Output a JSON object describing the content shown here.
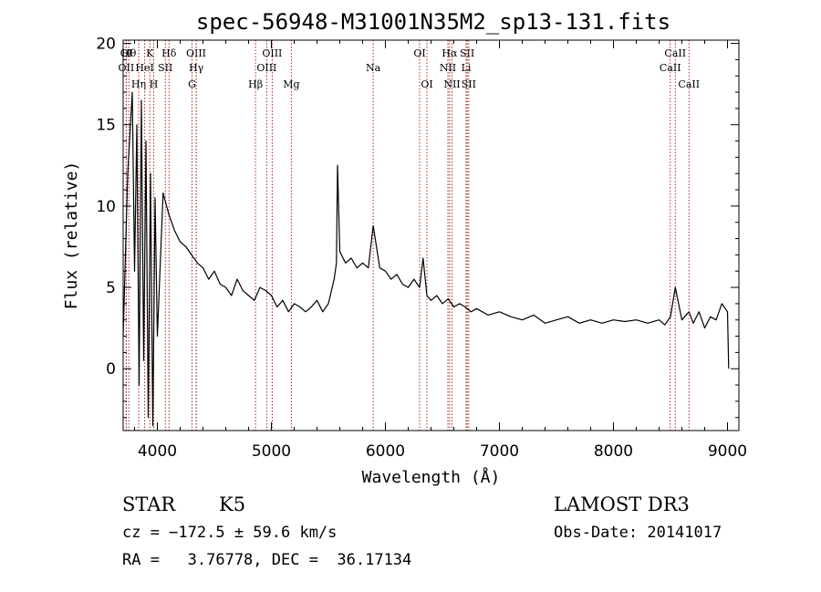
{
  "chart_data": {
    "type": "line",
    "title": "spec-56948-M31001N35M2_sp13-131.fits",
    "xlabel": "Wavelength (Å)",
    "ylabel": "Flux (relative)",
    "xlim": [
      3700,
      9100
    ],
    "ylim": [
      -3.8,
      20.2
    ],
    "xticks": [
      4000,
      5000,
      6000,
      7000,
      8000,
      9000
    ],
    "yticks": [
      0,
      5,
      10,
      15,
      20
    ],
    "series": [
      {
        "name": "spectrum",
        "x": [
          3700,
          3740,
          3780,
          3800,
          3820,
          3840,
          3860,
          3880,
          3900,
          3920,
          3940,
          3960,
          3980,
          4000,
          4050,
          4100,
          4150,
          4200,
          4250,
          4300,
          4350,
          4400,
          4450,
          4500,
          4550,
          4600,
          4650,
          4700,
          4750,
          4800,
          4850,
          4900,
          4950,
          5000,
          5050,
          5100,
          5150,
          5200,
          5250,
          5300,
          5350,
          5400,
          5450,
          5500,
          5550,
          5570,
          5580,
          5600,
          5650,
          5700,
          5750,
          5800,
          5850,
          5893,
          5950,
          6000,
          6050,
          6100,
          6150,
          6200,
          6250,
          6300,
          6330,
          6364,
          6400,
          6450,
          6500,
          6550,
          6600,
          6650,
          6700,
          6750,
          6800,
          6900,
          7000,
          7100,
          7200,
          7300,
          7400,
          7500,
          7600,
          7700,
          7800,
          7900,
          8000,
          8100,
          8200,
          8300,
          8400,
          8450,
          8500,
          8542,
          8600,
          8662,
          8700,
          8750,
          8800,
          8850,
          8900,
          8950,
          9000,
          9010
        ],
        "y": [
          2.0,
          12.0,
          17.0,
          6.0,
          15.0,
          -1.0,
          16.5,
          0.5,
          14.0,
          -3.0,
          12.0,
          -3.5,
          10.5,
          2.0,
          10.8,
          9.5,
          8.5,
          7.8,
          7.5,
          7.0,
          6.5,
          6.2,
          5.5,
          6.0,
          5.2,
          5.0,
          4.5,
          5.5,
          4.8,
          4.5,
          4.2,
          5.0,
          4.8,
          4.5,
          3.8,
          4.2,
          3.5,
          4.0,
          3.8,
          3.5,
          3.8,
          4.2,
          3.5,
          4.0,
          5.5,
          6.5,
          12.5,
          7.2,
          6.5,
          6.8,
          6.2,
          6.5,
          6.2,
          8.8,
          6.2,
          6.0,
          5.5,
          5.8,
          5.2,
          5.0,
          5.5,
          5.0,
          6.8,
          4.5,
          4.2,
          4.5,
          4.0,
          4.3,
          3.8,
          4.0,
          3.8,
          3.5,
          3.7,
          3.3,
          3.5,
          3.2,
          3.0,
          3.3,
          2.8,
          3.0,
          3.2,
          2.8,
          3.0,
          2.8,
          3.0,
          2.9,
          3.0,
          2.8,
          3.0,
          2.7,
          3.2,
          5.0,
          3.0,
          3.5,
          2.8,
          3.5,
          2.5,
          3.2,
          3.0,
          4.0,
          3.5,
          0.0
        ]
      }
    ],
    "lines": [
      {
        "label": "OII",
        "x": 3727,
        "row": 2
      },
      {
        "label": "Hθ",
        "x": 3750,
        "row": 1
      },
      {
        "label": "OI",
        "x": 3727,
        "row": 1
      },
      {
        "label": "Hη",
        "x": 3836,
        "row": 3
      },
      {
        "label": "K",
        "x": 3934,
        "row": 1
      },
      {
        "label": "HeI",
        "x": 3889,
        "row": 2
      },
      {
        "label": "H",
        "x": 3968,
        "row": 3
      },
      {
        "label": "SII",
        "x": 4070,
        "row": 2
      },
      {
        "label": "Hδ",
        "x": 4102,
        "row": 1
      },
      {
        "label": "OIII",
        "x": 4340,
        "row": 1
      },
      {
        "label": "Hγ",
        "x": 4341,
        "row": 2
      },
      {
        "label": "G",
        "x": 4304,
        "row": 3
      },
      {
        "label": "OIII",
        "x": 5007,
        "row": 1
      },
      {
        "label": "OIII",
        "x": 4959,
        "row": 2
      },
      {
        "label": "Hβ",
        "x": 4861,
        "row": 3
      },
      {
        "label": "Mg",
        "x": 5175,
        "row": 3
      },
      {
        "label": "Na",
        "x": 5893,
        "row": 2
      },
      {
        "label": "OI",
        "x": 6300,
        "row": 1
      },
      {
        "label": "OI",
        "x": 6364,
        "row": 3
      },
      {
        "label": "Hα",
        "x": 6563,
        "row": 1
      },
      {
        "label": "NII",
        "x": 6548,
        "row": 2
      },
      {
        "label": "NII",
        "x": 6584,
        "row": 3
      },
      {
        "label": "SII",
        "x": 6717,
        "row": 1
      },
      {
        "label": "Li",
        "x": 6708,
        "row": 2
      },
      {
        "label": "SII",
        "x": 6731,
        "row": 3
      },
      {
        "label": "CaII",
        "x": 8542,
        "row": 1
      },
      {
        "label": "CaII",
        "x": 8498,
        "row": 2
      },
      {
        "label": "CaII",
        "x": 8662,
        "row": 3
      }
    ],
    "line_color": "#a01010",
    "grid": false
  },
  "info": {
    "class": "STAR",
    "subclass": "K5",
    "survey": "LAMOST DR3",
    "cz": "cz = −172.5 ± 59.6 km/s",
    "obsdate": "Obs-Date: 20141017",
    "coords": "RA =   3.76778, DEC =  36.17134"
  }
}
